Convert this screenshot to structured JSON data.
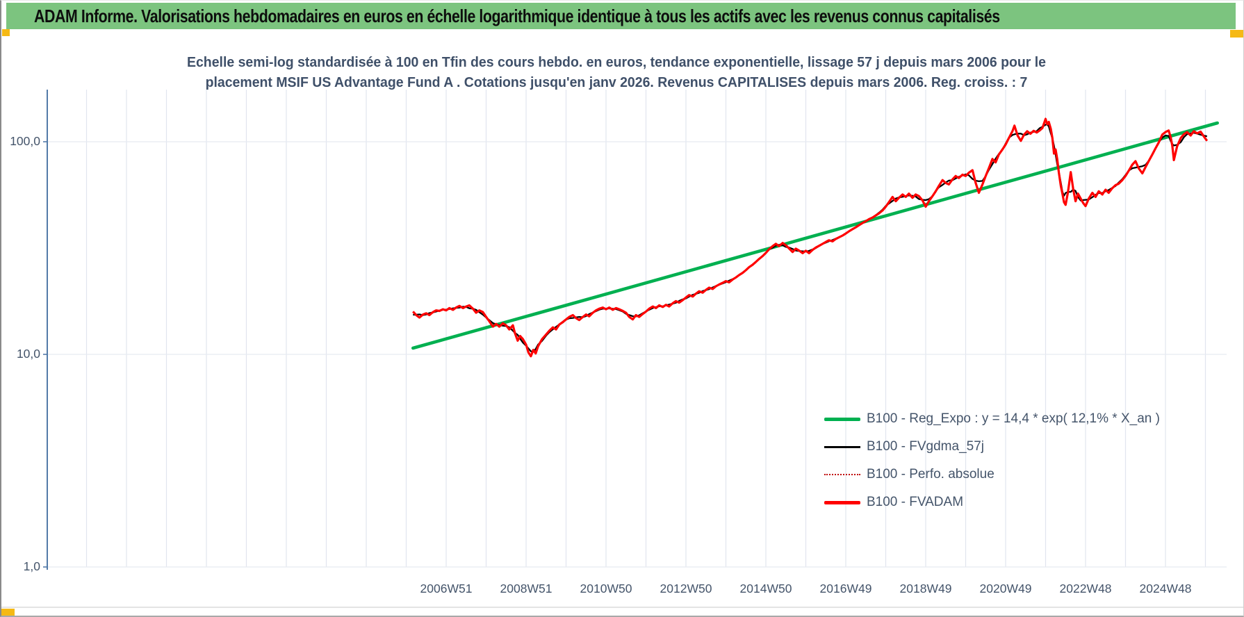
{
  "header": {
    "title": "ADAM Informe. Valorisations hebdomadaires en euros en échelle logarithmique identique à tous les actifs avec les revenus connus capitalisés"
  },
  "accent_colors": {
    "header_green": "#7cc47f",
    "gold_marker": "#f5b915",
    "title_text": "#3f5069",
    "axis_text": "#44546a",
    "axis_line": "#527aa8"
  },
  "chart_data": {
    "type": "line",
    "title_line1": "Echelle semi-log standardisée à 100 en Tfin des cours hebdo. en euros, tendance exponentielle, lissage 57 j depuis mars 2006 pour le",
    "title_line2": "placement MSIF US Advantage Fund A . Cotations jusqu'en janv 2026. Revenus CAPITALISES depuis mars 2006. Reg. croiss. : 7",
    "y_axis": {
      "scale": "log",
      "tick_labels": [
        "100,0",
        "10,0",
        "1,0"
      ],
      "tick_values": [
        100,
        10,
        1
      ],
      "ylim": [
        1,
        200
      ]
    },
    "x_axis": {
      "tick_labels": [
        "2006W51",
        "2008W51",
        "2010W50",
        "2012W50",
        "2014W50",
        "2016W49",
        "2018W49",
        "2020W49",
        "2022W48",
        "2024W48"
      ],
      "tick_years": [
        2007,
        2009,
        2011,
        2013,
        2015,
        2017,
        2019,
        2021,
        2023,
        2025
      ],
      "range_years": [
        2005.9,
        2026.5
      ],
      "grid_step_years": 1
    },
    "legend": [
      {
        "label": "B100 - Reg_Expo : y = 14,4 * exp( 12,1% *  X_an )",
        "color": "#00B050",
        "style": "thick-solid"
      },
      {
        "label": "B100 - FVgdma_57j",
        "color": "#000000",
        "style": "thin-solid"
      },
      {
        "label": "B100 - Perfo. absolue",
        "color": "#C00000",
        "style": "dotted"
      },
      {
        "label": "B100 - FVADAM",
        "color": "#FF0000",
        "style": "thick-solid"
      }
    ],
    "series": [
      {
        "name": "B100 - Reg_Expo",
        "color": "#00B050",
        "style": "thick-solid",
        "points": [
          [
            2006.17,
            10.7
          ],
          [
            2026.3,
            122.5
          ]
        ]
      },
      {
        "name": "B100 - FVgdma_57j",
        "color": "#000000",
        "style": "thin-solid",
        "derived": "moving-average-of-FVADAM",
        "smooth_window_points": 5
      },
      {
        "name": "B100 - Perfo. absolue",
        "color": "#C00000",
        "style": "dotted",
        "derived": "same-as-FVADAM"
      },
      {
        "name": "B100 - FVADAM",
        "color": "#FF0000",
        "style": "thick-solid",
        "points": [
          [
            2006.17,
            15.9
          ],
          [
            2006.25,
            15.3
          ],
          [
            2006.33,
            14.9
          ],
          [
            2006.42,
            15.4
          ],
          [
            2006.5,
            15.6
          ],
          [
            2006.58,
            15.3
          ],
          [
            2006.67,
            15.8
          ],
          [
            2006.75,
            16.1
          ],
          [
            2006.83,
            16.0
          ],
          [
            2006.92,
            16.3
          ],
          [
            2007.0,
            16.1
          ],
          [
            2007.08,
            16.5
          ],
          [
            2007.17,
            16.2
          ],
          [
            2007.25,
            16.6
          ],
          [
            2007.33,
            16.9
          ],
          [
            2007.42,
            16.5
          ],
          [
            2007.5,
            16.8
          ],
          [
            2007.58,
            17.0
          ],
          [
            2007.67,
            16.4
          ],
          [
            2007.75,
            15.7
          ],
          [
            2007.83,
            16.1
          ],
          [
            2007.92,
            15.8
          ],
          [
            2008.0,
            15.0
          ],
          [
            2008.08,
            14.3
          ],
          [
            2008.17,
            13.5
          ],
          [
            2008.25,
            13.9
          ],
          [
            2008.33,
            13.5
          ],
          [
            2008.42,
            14.0
          ],
          [
            2008.5,
            13.7
          ],
          [
            2008.58,
            13.1
          ],
          [
            2008.67,
            13.7
          ],
          [
            2008.72,
            12.6
          ],
          [
            2008.79,
            11.6
          ],
          [
            2008.85,
            12.2
          ],
          [
            2008.92,
            11.8
          ],
          [
            2009.0,
            11.1
          ],
          [
            2009.06,
            10.2
          ],
          [
            2009.12,
            9.8
          ],
          [
            2009.18,
            10.5
          ],
          [
            2009.24,
            10.1
          ],
          [
            2009.3,
            10.9
          ],
          [
            2009.4,
            11.8
          ],
          [
            2009.5,
            12.4
          ],
          [
            2009.58,
            12.9
          ],
          [
            2009.67,
            13.4
          ],
          [
            2009.75,
            13.1
          ],
          [
            2009.83,
            13.8
          ],
          [
            2009.92,
            14.2
          ],
          [
            2010.0,
            14.6
          ],
          [
            2010.08,
            15.0
          ],
          [
            2010.17,
            15.3
          ],
          [
            2010.25,
            14.8
          ],
          [
            2010.33,
            14.5
          ],
          [
            2010.42,
            15.0
          ],
          [
            2010.5,
            15.4
          ],
          [
            2010.58,
            15.1
          ],
          [
            2010.67,
            15.7
          ],
          [
            2010.75,
            16.1
          ],
          [
            2010.83,
            16.4
          ],
          [
            2010.92,
            16.6
          ],
          [
            2011.0,
            16.3
          ],
          [
            2011.08,
            16.6
          ],
          [
            2011.17,
            16.2
          ],
          [
            2011.25,
            16.5
          ],
          [
            2011.33,
            16.3
          ],
          [
            2011.42,
            16.0
          ],
          [
            2011.5,
            15.7
          ],
          [
            2011.58,
            15.0
          ],
          [
            2011.67,
            14.6
          ],
          [
            2011.75,
            15.3
          ],
          [
            2011.83,
            15.0
          ],
          [
            2011.92,
            15.5
          ],
          [
            2012.0,
            15.9
          ],
          [
            2012.08,
            16.4
          ],
          [
            2012.17,
            16.8
          ],
          [
            2012.25,
            16.5
          ],
          [
            2012.33,
            17.0
          ],
          [
            2012.42,
            16.7
          ],
          [
            2012.5,
            17.1
          ],
          [
            2012.58,
            16.8
          ],
          [
            2012.67,
            17.4
          ],
          [
            2012.75,
            17.8
          ],
          [
            2012.83,
            17.5
          ],
          [
            2012.92,
            18.0
          ],
          [
            2013.0,
            18.5
          ],
          [
            2013.08,
            19.0
          ],
          [
            2013.17,
            18.7
          ],
          [
            2013.25,
            19.3
          ],
          [
            2013.33,
            19.8
          ],
          [
            2013.42,
            19.5
          ],
          [
            2013.5,
            20.1
          ],
          [
            2013.58,
            20.6
          ],
          [
            2013.67,
            20.3
          ],
          [
            2013.75,
            20.9
          ],
          [
            2013.83,
            21.3
          ],
          [
            2013.92,
            21.7
          ],
          [
            2014.0,
            22.1
          ],
          [
            2014.08,
            21.8
          ],
          [
            2014.17,
            22.5
          ],
          [
            2014.25,
            23.0
          ],
          [
            2014.33,
            23.6
          ],
          [
            2014.42,
            24.2
          ],
          [
            2014.5,
            24.9
          ],
          [
            2014.58,
            25.7
          ],
          [
            2014.67,
            26.4
          ],
          [
            2014.75,
            27.2
          ],
          [
            2014.83,
            28.1
          ],
          [
            2014.92,
            29.0
          ],
          [
            2015.0,
            30.0
          ],
          [
            2015.08,
            31.2
          ],
          [
            2015.17,
            32.3
          ],
          [
            2015.25,
            33.1
          ],
          [
            2015.33,
            32.3
          ],
          [
            2015.42,
            33.4
          ],
          [
            2015.5,
            32.6
          ],
          [
            2015.58,
            31.5
          ],
          [
            2015.67,
            30.3
          ],
          [
            2015.75,
            31.4
          ],
          [
            2015.83,
            30.8
          ],
          [
            2015.92,
            29.9
          ],
          [
            2016.0,
            30.7
          ],
          [
            2016.08,
            29.9
          ],
          [
            2016.17,
            31.0
          ],
          [
            2016.25,
            31.8
          ],
          [
            2016.33,
            32.4
          ],
          [
            2016.42,
            33.1
          ],
          [
            2016.5,
            33.8
          ],
          [
            2016.58,
            34.4
          ],
          [
            2016.67,
            34.0
          ],
          [
            2016.75,
            34.9
          ],
          [
            2016.83,
            35.5
          ],
          [
            2016.92,
            36.2
          ],
          [
            2017.0,
            37.0
          ],
          [
            2017.08,
            37.9
          ],
          [
            2017.17,
            38.8
          ],
          [
            2017.25,
            39.6
          ],
          [
            2017.33,
            40.5
          ],
          [
            2017.42,
            41.5
          ],
          [
            2017.5,
            42.3
          ],
          [
            2017.58,
            43.2
          ],
          [
            2017.67,
            44.0
          ],
          [
            2017.75,
            45.0
          ],
          [
            2017.83,
            46.0
          ],
          [
            2017.92,
            47.5
          ],
          [
            2018.0,
            49.5
          ],
          [
            2018.08,
            52.0
          ],
          [
            2018.17,
            55.0
          ],
          [
            2018.25,
            52.5
          ],
          [
            2018.33,
            54.5
          ],
          [
            2018.42,
            56.5
          ],
          [
            2018.5,
            55.0
          ],
          [
            2018.58,
            57.0
          ],
          [
            2018.67,
            54.5
          ],
          [
            2018.75,
            56.5
          ],
          [
            2018.83,
            55.5
          ],
          [
            2018.92,
            53.0
          ],
          [
            2019.0,
            49.5
          ],
          [
            2019.08,
            52.5
          ],
          [
            2019.17,
            55.5
          ],
          [
            2019.25,
            58.5
          ],
          [
            2019.33,
            62.0
          ],
          [
            2019.42,
            66.0
          ],
          [
            2019.5,
            64.0
          ],
          [
            2019.58,
            63.0
          ],
          [
            2019.67,
            66.5
          ],
          [
            2019.75,
            69.0
          ],
          [
            2019.83,
            67.5
          ],
          [
            2019.92,
            70.0
          ],
          [
            2020.0,
            69.0
          ],
          [
            2020.08,
            71.5
          ],
          [
            2020.17,
            73.5
          ],
          [
            2020.25,
            64.0
          ],
          [
            2020.33,
            57.5
          ],
          [
            2020.42,
            63.0
          ],
          [
            2020.5,
            69.0
          ],
          [
            2020.58,
            75.0
          ],
          [
            2020.67,
            83.0
          ],
          [
            2020.75,
            80.0
          ],
          [
            2020.83,
            87.0
          ],
          [
            2020.92,
            92.0
          ],
          [
            2021.0,
            97.0
          ],
          [
            2021.08,
            104.0
          ],
          [
            2021.17,
            112.0
          ],
          [
            2021.22,
            119.0
          ],
          [
            2021.3,
            107.0
          ],
          [
            2021.38,
            101.0
          ],
          [
            2021.46,
            108.0
          ],
          [
            2021.54,
            112.0
          ],
          [
            2021.62,
            109.0
          ],
          [
            2021.7,
            112.5
          ],
          [
            2021.78,
            110.5
          ],
          [
            2021.85,
            113.0
          ],
          [
            2021.92,
            116.0
          ],
          [
            2022.0,
            128.0
          ],
          [
            2022.04,
            121.0
          ],
          [
            2022.08,
            124.0
          ],
          [
            2022.13,
            115.0
          ],
          [
            2022.17,
            104.0
          ],
          [
            2022.21,
            88.0
          ],
          [
            2022.25,
            92.0
          ],
          [
            2022.29,
            83.0
          ],
          [
            2022.33,
            72.0
          ],
          [
            2022.38,
            62.0
          ],
          [
            2022.42,
            57.0
          ],
          [
            2022.46,
            52.0
          ],
          [
            2022.5,
            50.5
          ],
          [
            2022.56,
            58.0
          ],
          [
            2022.63,
            72.0
          ],
          [
            2022.69,
            60.0
          ],
          [
            2022.75,
            52.5
          ],
          [
            2022.81,
            57.0
          ],
          [
            2022.88,
            54.0
          ],
          [
            2022.94,
            51.5
          ],
          [
            2023.0,
            49.8
          ],
          [
            2023.08,
            54.0
          ],
          [
            2023.17,
            57.5
          ],
          [
            2023.25,
            55.0
          ],
          [
            2023.33,
            58.5
          ],
          [
            2023.42,
            56.5
          ],
          [
            2023.5,
            59.5
          ],
          [
            2023.58,
            57.5
          ],
          [
            2023.67,
            60.5
          ],
          [
            2023.75,
            62.5
          ],
          [
            2023.83,
            63.5
          ],
          [
            2023.92,
            66.0
          ],
          [
            2024.0,
            69.0
          ],
          [
            2024.08,
            73.0
          ],
          [
            2024.17,
            78.0
          ],
          [
            2024.25,
            81.0
          ],
          [
            2024.33,
            75.0
          ],
          [
            2024.42,
            71.0
          ],
          [
            2024.5,
            76.0
          ],
          [
            2024.58,
            81.0
          ],
          [
            2024.67,
            87.0
          ],
          [
            2024.75,
            93.0
          ],
          [
            2024.83,
            99.0
          ],
          [
            2024.92,
            108.0
          ],
          [
            2025.0,
            111.0
          ],
          [
            2025.08,
            113.0
          ],
          [
            2025.13,
            105.0
          ],
          [
            2025.17,
            96.0
          ],
          [
            2025.21,
            82.0
          ],
          [
            2025.29,
            95.0
          ],
          [
            2025.38,
            104.0
          ],
          [
            2025.46,
            108.5
          ],
          [
            2025.54,
            111.0
          ],
          [
            2025.63,
            107.0
          ],
          [
            2025.71,
            112.0
          ],
          [
            2025.79,
            109.5
          ],
          [
            2025.88,
            111.5
          ],
          [
            2025.96,
            106.0
          ],
          [
            2026.04,
            101.0
          ]
        ]
      }
    ]
  }
}
